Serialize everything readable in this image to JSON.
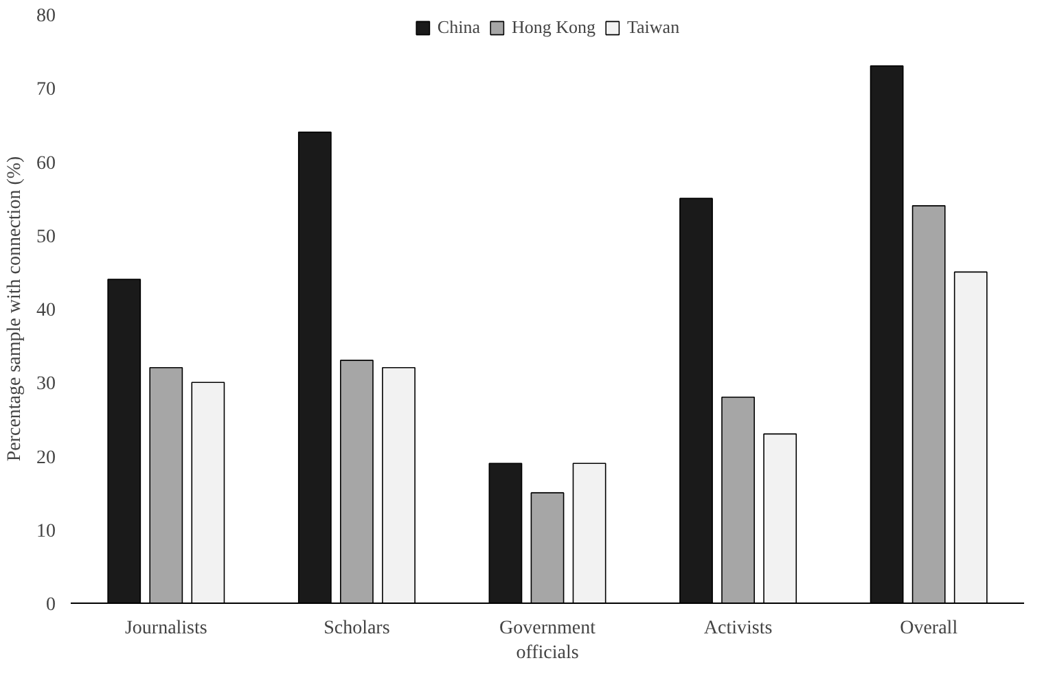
{
  "chart_data": {
    "type": "bar",
    "ylabel": "Percentage sample with connection (%)",
    "categories": [
      "Journalists",
      "Scholars",
      "Government officials",
      "Activists",
      "Overall"
    ],
    "series": [
      {
        "name": "China",
        "color": "#1a1a1a",
        "values": [
          44,
          64,
          19,
          55,
          73
        ]
      },
      {
        "name": "Hong Kong",
        "color": "#a6a6a6",
        "values": [
          32,
          33,
          15,
          28,
          54
        ]
      },
      {
        "name": "Taiwan",
        "color": "#f2f2f2",
        "values": [
          30,
          32,
          19,
          23,
          45
        ]
      }
    ],
    "ylim": [
      0,
      80
    ],
    "yticks": [
      0,
      10,
      20,
      30,
      40,
      50,
      60,
      70,
      80
    ],
    "grid": false,
    "legend": "top"
  }
}
